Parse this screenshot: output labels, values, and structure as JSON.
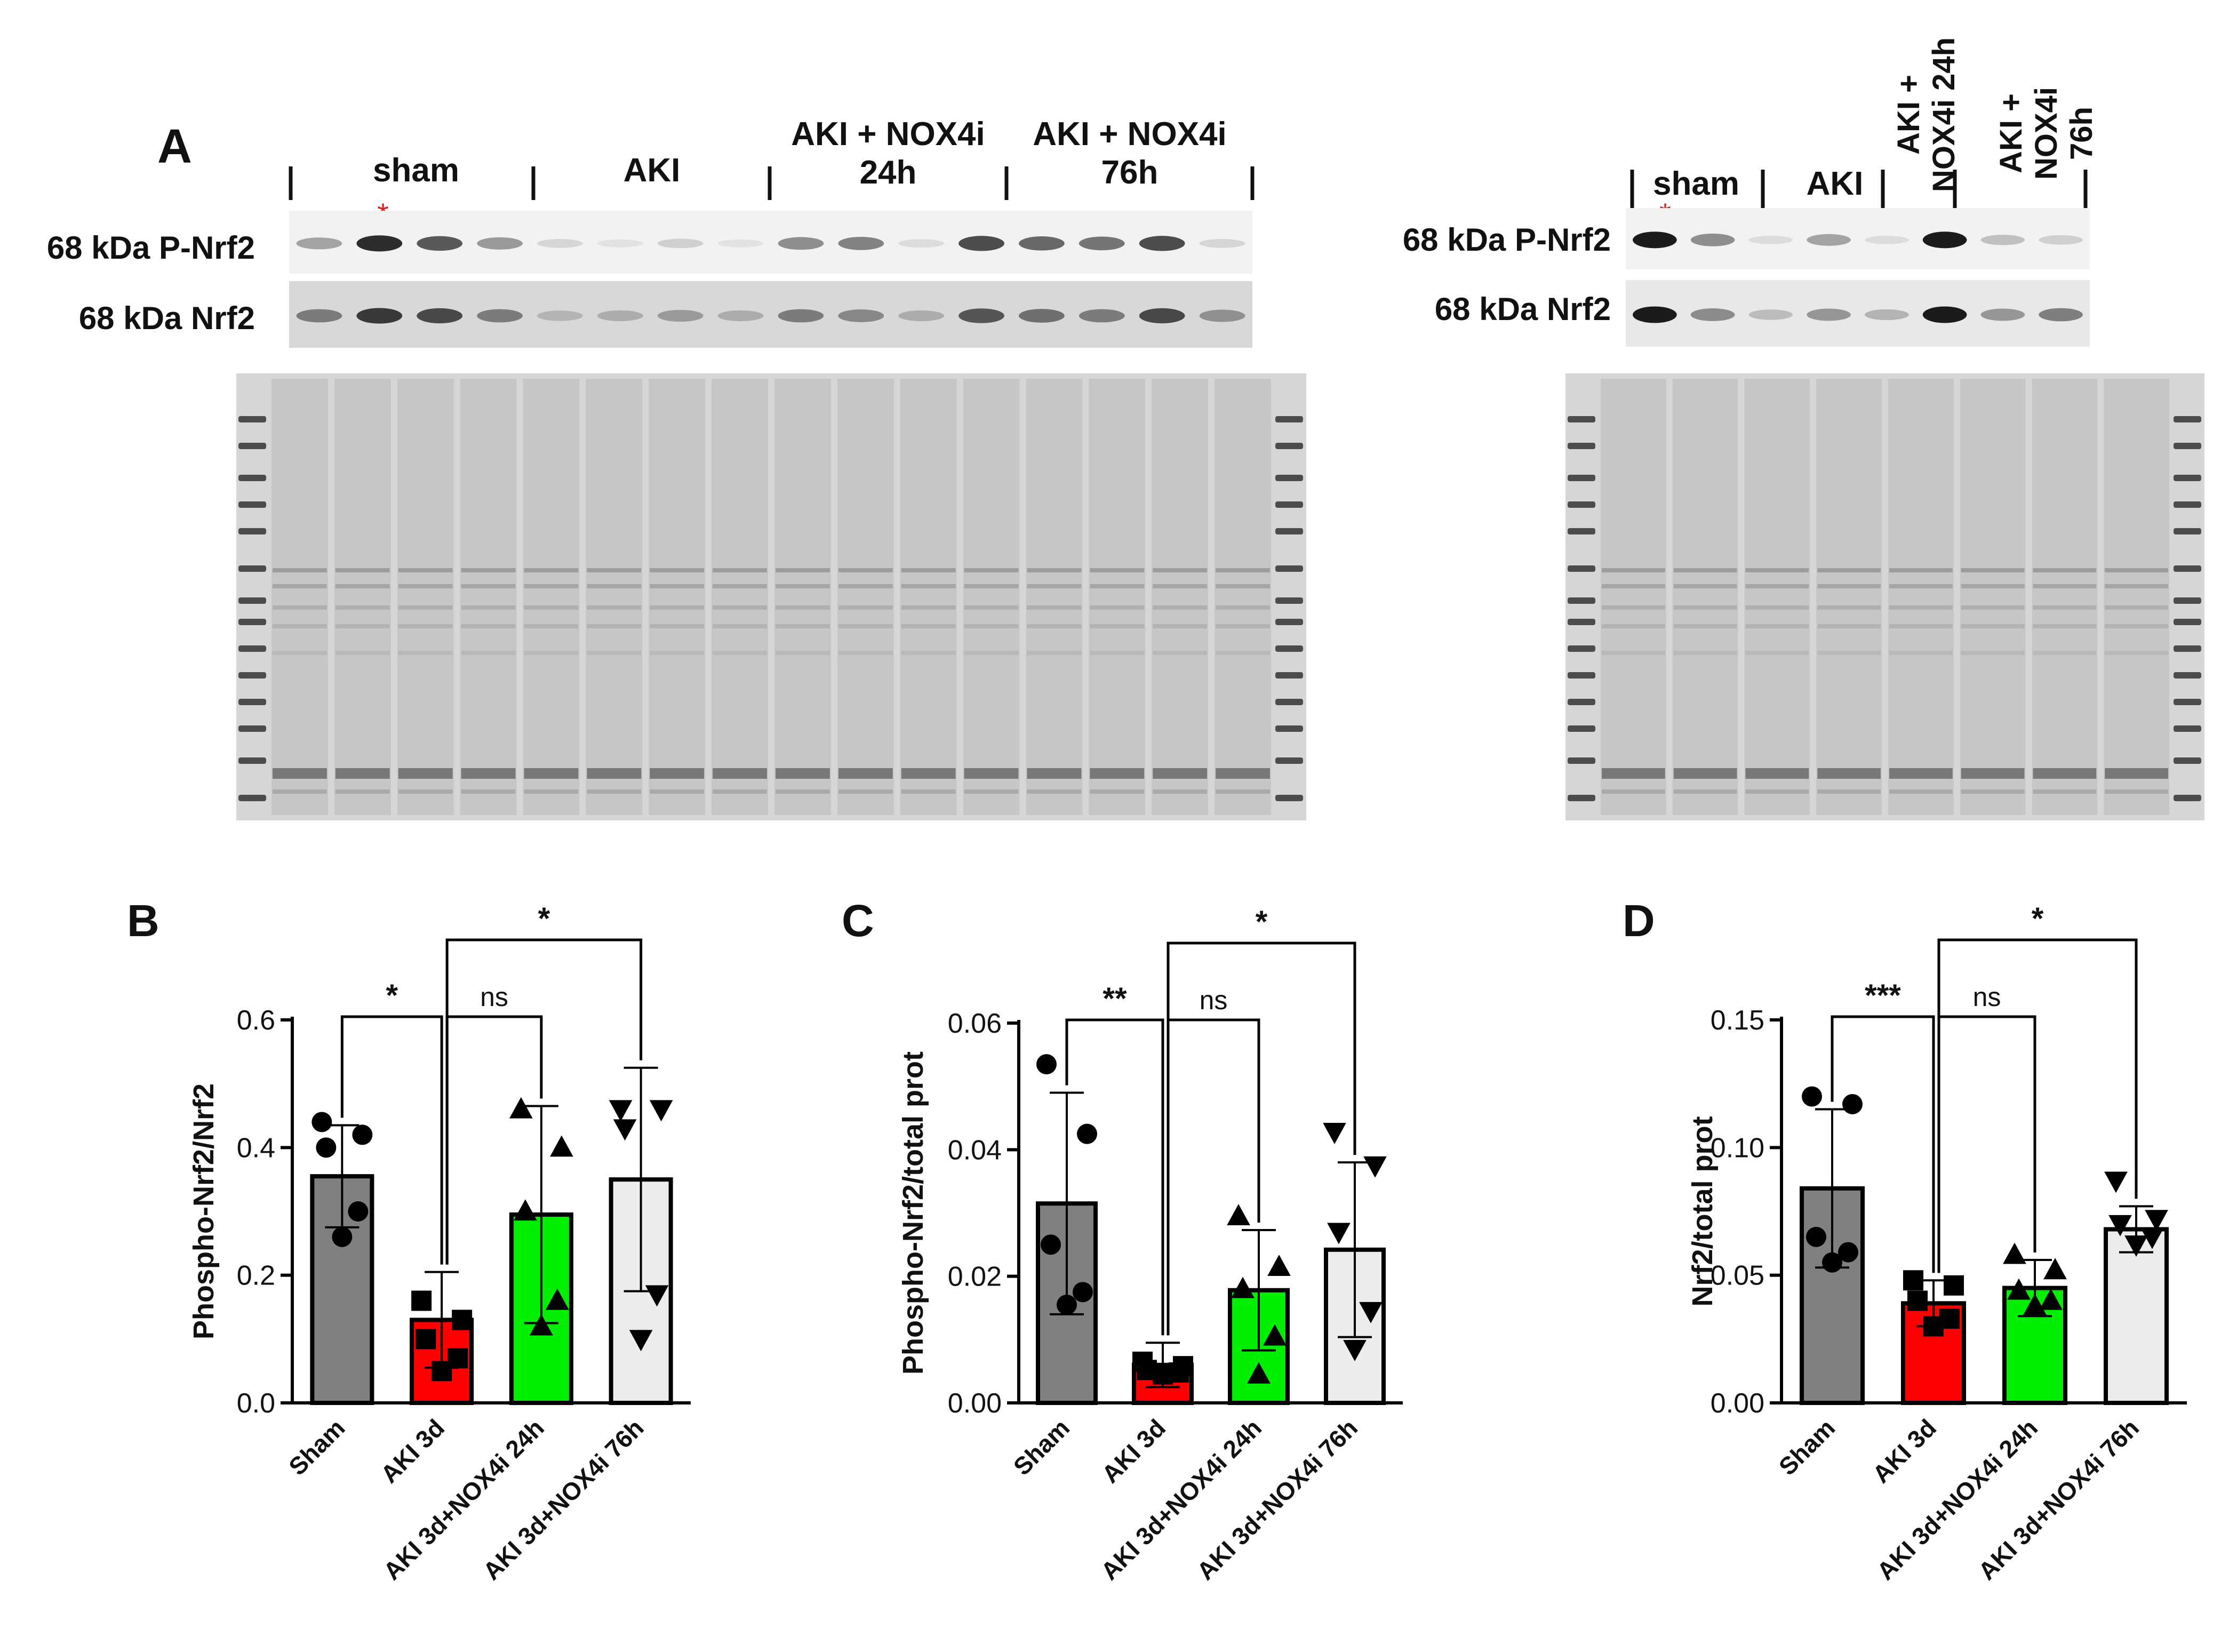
{
  "panel_letters": {
    "a": "A",
    "b": "B",
    "c": "C",
    "d": "D"
  },
  "blot_left": {
    "groups": [
      "sham",
      "AKI",
      "AKI + NOX4i\n24h",
      "AKI + NOX4i\n76h"
    ],
    "row_labels": [
      "68 kDa P-Nrf2",
      "68 kDa Nrf2"
    ],
    "asterisk": "*"
  },
  "blot_right": {
    "groups": [
      "sham",
      "AKI",
      "AKI +\nNOX4i 24h",
      "AKI +\nNOX4i\n76h"
    ],
    "row_labels": [
      "68 kDa  P-Nrf2",
      "68 kDa  Nrf2"
    ],
    "asterisk": "*"
  },
  "colors": {
    "sham": "#808080",
    "aki": "#ff0000",
    "nox24": "#00ee00",
    "nox76": "#ececec",
    "asterisk": "#e02020"
  },
  "chart_data": [
    {
      "type": "bar",
      "panel": "B",
      "ylabel": "Phospho-Nrf2/Nrf2",
      "ylim": [
        0,
        0.6
      ],
      "yticks": [
        "0.0",
        "0.2",
        "0.4",
        "0.6"
      ],
      "categories": [
        "Sham",
        "AKI 3d",
        "AKI 3d+NOX4i 24h",
        "AKI 3d+NOX4i 76h"
      ],
      "values": [
        0.355,
        0.13,
        0.295,
        0.35
      ],
      "error": [
        0.08,
        0.075,
        0.17,
        0.175
      ],
      "points": [
        [
          0.44,
          0.42,
          0.4,
          0.3,
          0.26
        ],
        [
          0.16,
          0.13,
          0.1,
          0.07,
          0.05
        ],
        [
          0.46,
          0.4,
          0.3,
          0.16,
          0.12
        ],
        [
          0.46,
          0.46,
          0.43,
          0.17,
          0.1
        ]
      ],
      "markers": [
        "circle",
        "square",
        "triangle",
        "triangle-down"
      ],
      "comparisons": [
        {
          "from": 0,
          "to": 1,
          "label": "*"
        },
        {
          "from": 1,
          "to": 2,
          "label": "ns"
        },
        {
          "from": 1,
          "to": 3,
          "label": "*"
        }
      ]
    },
    {
      "type": "bar",
      "panel": "C",
      "ylabel": "Phospho-Nrf2/total prot",
      "ylim": [
        0,
        0.06
      ],
      "yticks": [
        "0.00",
        "0.02",
        "0.04",
        "0.06"
      ],
      "categories": [
        "Sham",
        "AKI 3d",
        "AKI 3d+NOX4i 24h",
        "AKI 3d+NOX4i 76h"
      ],
      "values": [
        0.0315,
        0.006,
        0.0178,
        0.0242
      ],
      "error": [
        0.0175,
        0.0035,
        0.0095,
        0.0138
      ],
      "points": [
        [
          0.0535,
          0.0425,
          0.025,
          0.0175,
          0.0155
        ],
        [
          0.0065,
          0.0058,
          0.0052,
          0.0048,
          0.0045
        ],
        [
          0.0295,
          0.0215,
          0.018,
          0.0105,
          0.0045
        ],
        [
          0.0428,
          0.0375,
          0.027,
          0.0145,
          0.0085
        ]
      ],
      "markers": [
        "circle",
        "square",
        "triangle",
        "triangle-down"
      ],
      "comparisons": [
        {
          "from": 0,
          "to": 1,
          "label": "**"
        },
        {
          "from": 1,
          "to": 2,
          "label": "ns"
        },
        {
          "from": 1,
          "to": 3,
          "label": "*"
        }
      ]
    },
    {
      "type": "bar",
      "panel": "D",
      "ylabel": "Nrf2/total prot",
      "ylim": [
        0,
        0.15
      ],
      "yticks": [
        "0.00",
        "0.05",
        "0.10",
        "0.15"
      ],
      "categories": [
        "Sham",
        "AKI 3d",
        "AKI 3d+NOX4i 24h",
        "AKI 3d+NOX4i 76h"
      ],
      "values": [
        0.084,
        0.039,
        0.045,
        0.068
      ],
      "error": [
        0.031,
        0.009,
        0.011,
        0.009
      ],
      "points": [
        [
          0.12,
          0.117,
          0.065,
          0.059,
          0.055
        ],
        [
          0.048,
          0.046,
          0.04,
          0.033,
          0.03
        ],
        [
          0.058,
          0.052,
          0.044,
          0.04,
          0.038
        ],
        [
          0.087,
          0.072,
          0.07,
          0.065,
          0.062
        ]
      ],
      "markers": [
        "circle",
        "square",
        "triangle",
        "triangle-down"
      ],
      "comparisons": [
        {
          "from": 0,
          "to": 1,
          "label": "***"
        },
        {
          "from": 1,
          "to": 2,
          "label": "ns"
        },
        {
          "from": 1,
          "to": 3,
          "label": "*"
        }
      ]
    }
  ]
}
